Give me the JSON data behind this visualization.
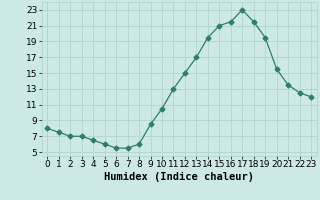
{
  "x": [
    0,
    1,
    2,
    3,
    4,
    5,
    6,
    7,
    8,
    9,
    10,
    11,
    12,
    13,
    14,
    15,
    16,
    17,
    18,
    19,
    20,
    21,
    22,
    23
  ],
  "y": [
    8.0,
    7.5,
    7.0,
    7.0,
    6.5,
    6.0,
    5.5,
    5.5,
    6.0,
    8.5,
    10.5,
    13.0,
    15.0,
    17.0,
    19.5,
    21.0,
    21.5,
    23.0,
    21.5,
    19.5,
    15.5,
    13.5,
    12.5,
    12.0
  ],
  "line_color": "#2e7d6e",
  "marker": "D",
  "marker_size": 2.5,
  "bg_color": "#cce9e6",
  "grid_color": "#b0d4cf",
  "xlabel": "Humidex (Indice chaleur)",
  "xlabel_fontsize": 7.5,
  "tick_fontsize": 6.5,
  "xlim": [
    -0.5,
    23.5
  ],
  "ylim": [
    4.5,
    24.0
  ],
  "yticks": [
    5,
    7,
    9,
    11,
    13,
    15,
    17,
    19,
    21,
    23
  ],
  "xticks": [
    0,
    1,
    2,
    3,
    4,
    5,
    6,
    7,
    8,
    9,
    10,
    11,
    12,
    13,
    14,
    15,
    16,
    17,
    18,
    19,
    20,
    21,
    22,
    23
  ]
}
